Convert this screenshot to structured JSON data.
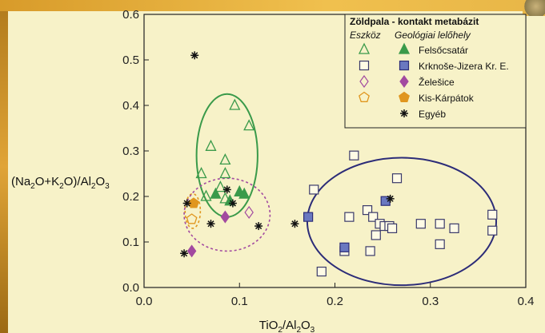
{
  "chart_data": {
    "type": "scatter",
    "xlabel_parts": [
      "TiO",
      "2",
      "/Al",
      "2",
      "O",
      "3"
    ],
    "ylabel_parts": [
      "(Na",
      "2",
      "O+K",
      "2",
      "O)/Al",
      "2",
      "O",
      "3"
    ],
    "xlim": [
      0.0,
      0.4
    ],
    "ylim": [
      0.0,
      0.6
    ],
    "xticks": [
      "0.0",
      "0.1",
      "0.2",
      "0.3",
      "0.4"
    ],
    "yticks": [
      "0.0",
      "0.1",
      "0.2",
      "0.3",
      "0.4",
      "0.5",
      "0.6"
    ],
    "legend": {
      "title": "Zöldpala - kontakt metabázit",
      "col1": "Eszköz",
      "col2": "Geológiai lelőhely",
      "entries": [
        "Felsőcsatár",
        "Krknoše-Jizera Kr. E.",
        "Želešice",
        "Kis-Kárpátok",
        "Egyéb"
      ],
      "position": "top-right"
    },
    "series": [
      {
        "name": "Felsőcsatár",
        "marker": "triangle",
        "color": "#3a9a4a",
        "open": [
          [
            0.06,
            0.25
          ],
          [
            0.07,
            0.31
          ],
          [
            0.08,
            0.22
          ],
          [
            0.085,
            0.25
          ],
          [
            0.085,
            0.28
          ],
          [
            0.095,
            0.4
          ],
          [
            0.11,
            0.355
          ],
          [
            0.065,
            0.2
          ],
          [
            0.085,
            0.195
          ]
        ],
        "filled": [
          [
            0.075,
            0.205
          ],
          [
            0.09,
            0.19
          ],
          [
            0.1,
            0.21
          ],
          [
            0.105,
            0.205
          ]
        ]
      },
      {
        "name": "Krknoše-Jizera Kr. E.",
        "marker": "square",
        "color": "#6a78c0",
        "open": [
          [
            0.178,
            0.215
          ],
          [
            0.186,
            0.035
          ],
          [
            0.21,
            0.08
          ],
          [
            0.215,
            0.155
          ],
          [
            0.22,
            0.29
          ],
          [
            0.234,
            0.17
          ],
          [
            0.237,
            0.08
          ],
          [
            0.24,
            0.155
          ],
          [
            0.243,
            0.115
          ],
          [
            0.247,
            0.14
          ],
          [
            0.252,
            0.135
          ],
          [
            0.257,
            0.135
          ],
          [
            0.26,
            0.13
          ],
          [
            0.265,
            0.24
          ],
          [
            0.29,
            0.14
          ],
          [
            0.31,
            0.095
          ],
          [
            0.31,
            0.14
          ],
          [
            0.325,
            0.13
          ],
          [
            0.365,
            0.16
          ],
          [
            0.365,
            0.125
          ]
        ],
        "filled": [
          [
            0.172,
            0.155
          ],
          [
            0.21,
            0.088
          ],
          [
            0.253,
            0.19
          ]
        ]
      },
      {
        "name": "Želešice",
        "marker": "diamond",
        "color": "#a24aa0",
        "open": [
          [
            0.11,
            0.165
          ]
        ],
        "filled": [
          [
            0.05,
            0.08
          ],
          [
            0.085,
            0.155
          ]
        ]
      },
      {
        "name": "Kis-Kárpátok",
        "marker": "pentagon",
        "color": "#e0961f",
        "open": [
          [
            0.05,
            0.15
          ]
        ],
        "filled": [
          [
            0.052,
            0.185
          ]
        ]
      },
      {
        "name": "Egyéb",
        "marker": "asterisk",
        "color": "#111111",
        "points": [
          [
            0.053,
            0.51
          ],
          [
            0.045,
            0.185
          ],
          [
            0.042,
            0.075
          ],
          [
            0.07,
            0.14
          ],
          [
            0.087,
            0.215
          ],
          [
            0.093,
            0.185
          ],
          [
            0.12,
            0.135
          ],
          [
            0.158,
            0.14
          ],
          [
            0.258,
            0.195
          ]
        ]
      }
    ],
    "ellipses": [
      {
        "name": "Felsőcsatár field",
        "color": "#3a9a4a",
        "dashed": false,
        "cx": 0.087,
        "cy": 0.29,
        "rx": 0.032,
        "ry": 0.135,
        "angle": 0
      },
      {
        "name": "Kis-Kárpátok field",
        "color": "#e0961f",
        "dashed": true,
        "cx": 0.051,
        "cy": 0.168,
        "rx": 0.008,
        "ry": 0.038,
        "angle": 0
      },
      {
        "name": "Želešice field",
        "color": "#a24aa0",
        "dashed": true,
        "cx": 0.087,
        "cy": 0.16,
        "rx": 0.045,
        "ry": 0.08,
        "angle": 0
      },
      {
        "name": "Krknoše field",
        "color": "#2c2c78",
        "dashed": false,
        "cx": 0.27,
        "cy": 0.145,
        "rx": 0.099,
        "ry": 0.14,
        "angle": 0
      }
    ]
  }
}
